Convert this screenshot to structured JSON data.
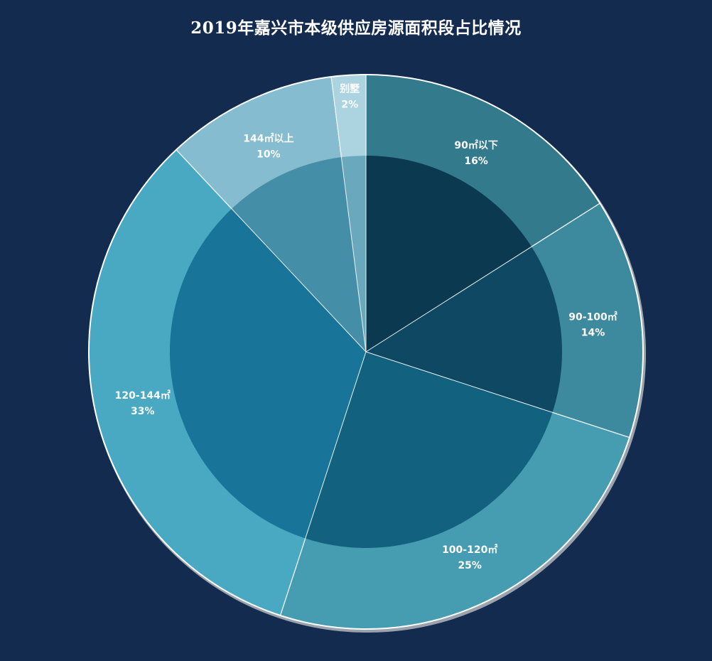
{
  "chart_data": {
    "type": "pie",
    "title": "2019年嘉兴市本级供应房源面积段占比情况",
    "start_angle_deg": 0,
    "direction": "clockwise",
    "slices": [
      {
        "label": "90㎡以下",
        "value": 16,
        "display": "16%",
        "outer_color": "#337a8d",
        "inner_color": "#0b3a50"
      },
      {
        "label": "90-100㎡",
        "value": 14,
        "display": "14%",
        "outer_color": "#3d8a9f",
        "inner_color": "#0f4863"
      },
      {
        "label": "100-120㎡",
        "value": 25,
        "display": "25%",
        "outer_color": "#469db2",
        "inner_color": "#12617f"
      },
      {
        "label": "120-144㎡",
        "value": 33,
        "display": "33%",
        "outer_color": "#49a9c2",
        "inner_color": "#187499"
      },
      {
        "label": "144㎡以上",
        "value": 10,
        "display": "10%",
        "outer_color": "#85bccf",
        "inner_color": "#458ea7"
      },
      {
        "label": "别墅",
        "value": 2,
        "display": "2%",
        "outer_color": "#acd3e0",
        "inner_color": "#6aa8be"
      }
    ],
    "background": "#132b4f"
  }
}
